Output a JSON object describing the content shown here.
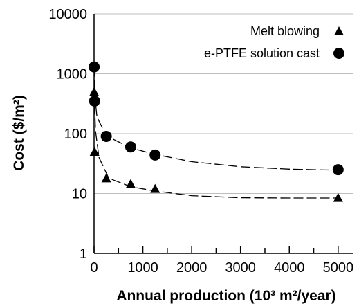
{
  "chart_data": {
    "type": "scatter",
    "xlabel": "Annual production (10³ m²/year)",
    "ylabel": "Cost ($/m²)",
    "x_ticks": [
      "0",
      "1000",
      "2000",
      "3000",
      "4000",
      "5000"
    ],
    "y_ticks": [
      "1",
      "10",
      "100",
      "1000",
      "10000"
    ],
    "x_range": [
      0,
      5300
    ],
    "y_range": [
      1,
      10000
    ],
    "y_scale": "log",
    "grid": "horizontal major lines",
    "legend_position": "top-right",
    "series": [
      {
        "name": "Melt blowing",
        "marker": "triangle",
        "color": "#000000",
        "points": [
          [
            1,
            500
          ],
          [
            10,
            50
          ],
          [
            250,
            18
          ],
          [
            750,
            14.5
          ],
          [
            1250,
            12
          ],
          [
            5000,
            8.5
          ]
        ],
        "trend": [
          [
            1,
            500
          ],
          [
            30,
            110
          ],
          [
            100,
            40
          ],
          [
            300,
            18
          ],
          [
            750,
            13
          ],
          [
            1250,
            11
          ],
          [
            2000,
            9.2
          ],
          [
            3000,
            8.5
          ],
          [
            4000,
            8.4
          ],
          [
            5000,
            8.4
          ]
        ]
      },
      {
        "name": "e-PTFE solution cast",
        "marker": "circle",
        "color": "#000000",
        "points": [
          [
            1,
            1300
          ],
          [
            10,
            350
          ],
          [
            250,
            90
          ],
          [
            750,
            60
          ],
          [
            1250,
            44
          ],
          [
            5000,
            25
          ]
        ],
        "trend": [
          [
            1,
            1300
          ],
          [
            10,
            450
          ],
          [
            60,
            190
          ],
          [
            250,
            92
          ],
          [
            750,
            58
          ],
          [
            1250,
            45
          ],
          [
            2000,
            34
          ],
          [
            3000,
            28
          ],
          [
            4000,
            25.5
          ],
          [
            5000,
            24.5
          ]
        ]
      }
    ]
  }
}
